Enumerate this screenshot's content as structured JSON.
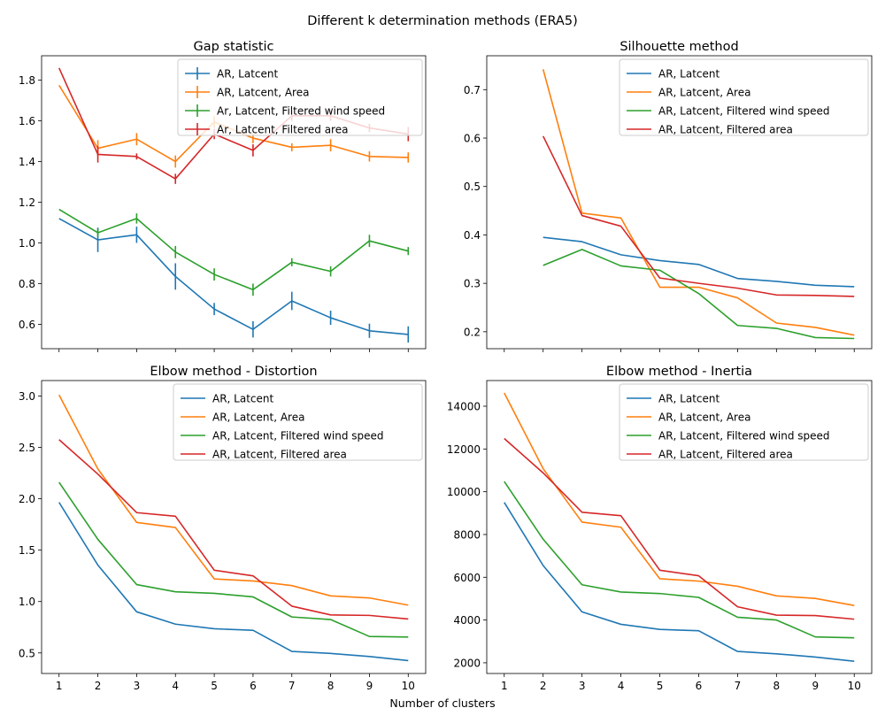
{
  "figure": {
    "suptitle": "Different k determination methods (ERA5)",
    "xlabel": "Number of clusters"
  },
  "chart_data": [
    {
      "type": "line",
      "title": "Gap statistic",
      "x": [
        1,
        2,
        3,
        4,
        5,
        6,
        7,
        8,
        9,
        10
      ],
      "xticks": [
        1,
        2,
        3,
        4,
        5,
        6,
        7,
        8,
        9,
        10
      ],
      "ylim": [
        0.48,
        1.92
      ],
      "yticks": [
        0.6,
        0.8,
        1.0,
        1.2,
        1.4,
        1.6,
        1.8
      ],
      "ytick_labels": [
        "0.6",
        "0.8",
        "1.0",
        "1.2",
        "1.4",
        "1.6",
        "1.8"
      ],
      "show_x_tick_labels": false,
      "errorbars": true,
      "legend": "upper right",
      "series": [
        {
          "name": "AR, Latcent",
          "color": "#1f77b4",
          "values": [
            1.12,
            1.015,
            1.04,
            0.835,
            0.675,
            0.575,
            0.715,
            0.632,
            0.568,
            0.55
          ],
          "errors": [
            0.0,
            0.06,
            0.04,
            0.065,
            0.03,
            0.04,
            0.045,
            0.035,
            0.035,
            0.04
          ]
        },
        {
          "name": "AR, Latcent, Area",
          "color": "#ff7f0e",
          "values": [
            1.775,
            1.465,
            1.51,
            1.4,
            1.595,
            1.515,
            1.47,
            1.48,
            1.425,
            1.42
          ],
          "errors": [
            0.0,
            0.04,
            0.03,
            0.03,
            0.03,
            0.025,
            0.02,
            0.03,
            0.025,
            0.025
          ]
        },
        {
          "name": "Ar, Latcent, Filtered wind speed",
          "color": "#2ca02c",
          "values": [
            1.165,
            1.05,
            1.12,
            0.955,
            0.845,
            0.77,
            0.905,
            0.86,
            1.01,
            0.96
          ],
          "errors": [
            0.0,
            0.02,
            0.025,
            0.03,
            0.03,
            0.03,
            0.02,
            0.025,
            0.03,
            0.02
          ]
        },
        {
          "name": "Ar, Latcent, Filtered area",
          "color": "#d62728",
          "values": [
            1.86,
            1.435,
            1.425,
            1.315,
            1.535,
            1.455,
            1.625,
            1.625,
            1.565,
            1.535
          ],
          "errors": [
            0.0,
            0.04,
            0.015,
            0.025,
            0.025,
            0.03,
            0.025,
            0.025,
            0.02,
            0.035
          ]
        }
      ]
    },
    {
      "type": "line",
      "title": "Silhouette method",
      "x": [
        1,
        2,
        3,
        4,
        5,
        6,
        7,
        8,
        9,
        10
      ],
      "xticks": [
        1,
        2,
        3,
        4,
        5,
        6,
        7,
        8,
        9,
        10
      ],
      "ylim": [
        0.165,
        0.77
      ],
      "yticks": [
        0.2,
        0.3,
        0.4,
        0.5,
        0.6,
        0.7
      ],
      "ytick_labels": [
        "0.2",
        "0.3",
        "0.4",
        "0.5",
        "0.6",
        "0.7"
      ],
      "show_x_tick_labels": false,
      "errorbars": false,
      "legend": "upper right",
      "series": [
        {
          "name": "AR, Latcent",
          "color": "#1f77b4",
          "x": [
            2,
            3,
            4,
            5,
            6,
            7,
            8,
            9,
            10
          ],
          "values": [
            0.395,
            0.386,
            0.359,
            0.347,
            0.339,
            0.31,
            0.304,
            0.296,
            0.293
          ]
        },
        {
          "name": "AR, Latcent, Area",
          "color": "#ff7f0e",
          "x": [
            2,
            3,
            4,
            5,
            6,
            7,
            8,
            9,
            10
          ],
          "values": [
            0.742,
            0.445,
            0.435,
            0.292,
            0.292,
            0.27,
            0.218,
            0.209,
            0.193
          ]
        },
        {
          "name": "AR, Latcent, Filtered wind speed",
          "color": "#2ca02c",
          "x": [
            2,
            3,
            4,
            5,
            6,
            7,
            8,
            9,
            10
          ],
          "values": [
            0.337,
            0.37,
            0.336,
            0.327,
            0.279,
            0.213,
            0.207,
            0.188,
            0.186
          ]
        },
        {
          "name": "AR, Latcent, Filtered area",
          "color": "#d62728",
          "x": [
            2,
            3,
            4,
            5,
            6,
            7,
            8,
            9,
            10
          ],
          "values": [
            0.604,
            0.44,
            0.418,
            0.311,
            0.3,
            0.29,
            0.276,
            0.275,
            0.273
          ]
        }
      ]
    },
    {
      "type": "line",
      "title": "Elbow method - Distortion",
      "x": [
        1,
        2,
        3,
        4,
        5,
        6,
        7,
        8,
        9,
        10
      ],
      "xticks": [
        1,
        2,
        3,
        4,
        5,
        6,
        7,
        8,
        9,
        10
      ],
      "ylim": [
        0.3,
        3.15
      ],
      "yticks": [
        0.5,
        1.0,
        1.5,
        2.0,
        2.5,
        3.0
      ],
      "ytick_labels": [
        "0.5",
        "1.0",
        "1.5",
        "2.0",
        "2.5",
        "3.0"
      ],
      "show_x_tick_labels": true,
      "errorbars": false,
      "legend": "upper right",
      "series": [
        {
          "name": "AR, Latcent",
          "color": "#1f77b4",
          "values": [
            1.965,
            1.355,
            0.9,
            0.78,
            0.735,
            0.72,
            0.515,
            0.495,
            0.465,
            0.425
          ]
        },
        {
          "name": "AR, Latcent, Area",
          "color": "#ff7f0e",
          "values": [
            3.01,
            2.29,
            1.77,
            1.72,
            1.22,
            1.2,
            1.155,
            1.055,
            1.035,
            0.965
          ]
        },
        {
          "name": "AR, Latcent, Filtered wind speed",
          "color": "#2ca02c",
          "values": [
            2.16,
            1.605,
            1.165,
            1.095,
            1.08,
            1.045,
            0.85,
            0.825,
            0.66,
            0.655
          ]
        },
        {
          "name": "AR, Latcent, Filtered area",
          "color": "#d62728",
          "values": [
            2.575,
            2.24,
            1.865,
            1.83,
            1.305,
            1.25,
            0.955,
            0.87,
            0.865,
            0.83
          ]
        }
      ]
    },
    {
      "type": "line",
      "title": "Elbow method - Inertia",
      "x": [
        1,
        2,
        3,
        4,
        5,
        6,
        7,
        8,
        9,
        10
      ],
      "xticks": [
        1,
        2,
        3,
        4,
        5,
        6,
        7,
        8,
        9,
        10
      ],
      "ylim": [
        1500,
        15200
      ],
      "yticks": [
        2000,
        4000,
        6000,
        8000,
        10000,
        12000,
        14000
      ],
      "ytick_labels": [
        "2000",
        "4000",
        "6000",
        "8000",
        "10000",
        "12000",
        "14000"
      ],
      "show_x_tick_labels": true,
      "errorbars": false,
      "legend": "upper right",
      "series": [
        {
          "name": "AR, Latcent",
          "color": "#1f77b4",
          "values": [
            9500,
            6550,
            4380,
            3800,
            3560,
            3500,
            2530,
            2420,
            2270,
            2070
          ]
        },
        {
          "name": "AR, Latcent, Area",
          "color": "#ff7f0e",
          "values": [
            14620,
            11080,
            8580,
            8340,
            5930,
            5820,
            5580,
            5130,
            5010,
            4680
          ]
        },
        {
          "name": "AR, Latcent, Filtered wind speed",
          "color": "#2ca02c",
          "values": [
            10480,
            7780,
            5650,
            5310,
            5240,
            5060,
            4130,
            4000,
            3210,
            3170
          ]
        },
        {
          "name": "AR, Latcent, Filtered area",
          "color": "#d62728",
          "values": [
            12490,
            10880,
            9040,
            8880,
            6330,
            6070,
            4620,
            4230,
            4210,
            4040
          ]
        }
      ]
    }
  ]
}
